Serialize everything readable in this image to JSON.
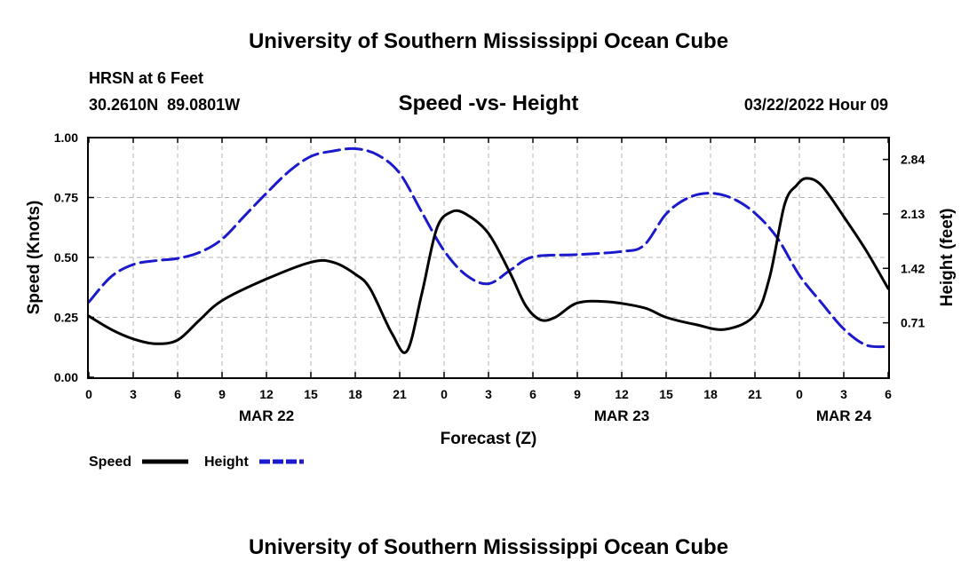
{
  "page": {
    "title_top": "University of Southern Mississippi Ocean Cube",
    "title_bottom": "University of Southern Mississippi Ocean Cube",
    "station": "HRSN at 6 Feet",
    "coords": "30.2610N  89.0801W",
    "chart_title": "Speed -vs- Height",
    "datetime": "03/22/2022 Hour 09"
  },
  "colors": {
    "speed": "#000000",
    "height": "#1a1acc",
    "grid": "#b4b4b4"
  },
  "chart_data": {
    "type": "line",
    "title": "Speed -vs- Height",
    "xlabel": "Forecast (Z)",
    "ylabel": "Speed (Knots)",
    "y2label": "Height (feet)",
    "xlim": [
      0,
      54
    ],
    "ylim": [
      0,
      1
    ],
    "y2lim": [
      0,
      3.125
    ],
    "x_ticks": [
      0,
      3,
      6,
      9,
      12,
      15,
      18,
      21,
      24,
      27,
      30,
      33,
      36,
      39,
      42,
      45,
      48,
      51,
      54
    ],
    "x_tick_labels": [
      "0",
      "3",
      "6",
      "9",
      "12",
      "15",
      "18",
      "21",
      "0",
      "3",
      "6",
      "9",
      "12",
      "15",
      "18",
      "21",
      "0",
      "3",
      "6"
    ],
    "y_ticks": [
      0,
      0.25,
      0.5,
      0.75,
      1.0
    ],
    "y_tick_labels": [
      "0.00",
      "0.25",
      "0.50",
      "0.75",
      "1.00"
    ],
    "y2_ticks": [
      0.71,
      1.42,
      2.13,
      2.84
    ],
    "y2_tick_labels": [
      "0.71",
      "1.42",
      "2.13",
      "2.84"
    ],
    "date_labels": [
      {
        "x": 12,
        "label": "MAR 22"
      },
      {
        "x": 36,
        "label": "MAR 23"
      },
      {
        "x": 51,
        "label": "MAR 24"
      }
    ],
    "legend": [
      {
        "name": "Speed",
        "style": "solid"
      },
      {
        "name": "Height",
        "style": "dashed"
      }
    ],
    "series": [
      {
        "name": "Speed",
        "axis": "left",
        "x": [
          0,
          1.5,
          3,
          4.5,
          6,
          7.5,
          9,
          12,
          15,
          16.5,
          18,
          19,
          20.5,
          21.5,
          22.5,
          23.5,
          24.5,
          25.5,
          27,
          28.5,
          29.5,
          30.5,
          31.5,
          33,
          35,
          37.5,
          39,
          41,
          43,
          45,
          46,
          47,
          47.8,
          48.5,
          49.5,
          51,
          52.5,
          54
        ],
        "y": [
          0.255,
          0.2,
          0.16,
          0.14,
          0.155,
          0.24,
          0.32,
          0.41,
          0.48,
          0.48,
          0.43,
          0.37,
          0.18,
          0.11,
          0.35,
          0.62,
          0.69,
          0.68,
          0.6,
          0.43,
          0.3,
          0.24,
          0.25,
          0.31,
          0.315,
          0.29,
          0.25,
          0.22,
          0.2,
          0.26,
          0.42,
          0.72,
          0.8,
          0.83,
          0.8,
          0.67,
          0.53,
          0.37
        ]
      },
      {
        "name": "Height",
        "axis": "right",
        "x": [
          0,
          1.5,
          3,
          4.5,
          6,
          7.5,
          9,
          10.5,
          12,
          13.5,
          15,
          16.5,
          18,
          19.5,
          21,
          22.5,
          24,
          25.5,
          27,
          28.5,
          30,
          33,
          36,
          37.5,
          39,
          40.5,
          42,
          43.5,
          45,
          46.5,
          48,
          49.5,
          51,
          52.5,
          54
        ],
        "y": [
          0.98,
          1.31,
          1.47,
          1.52,
          1.55,
          1.63,
          1.8,
          2.1,
          2.4,
          2.68,
          2.88,
          2.95,
          2.98,
          2.9,
          2.66,
          2.15,
          1.65,
          1.33,
          1.22,
          1.4,
          1.57,
          1.6,
          1.64,
          1.72,
          2.13,
          2.34,
          2.4,
          2.33,
          2.14,
          1.82,
          1.33,
          0.97,
          0.63,
          0.42,
          0.4
        ]
      }
    ]
  }
}
